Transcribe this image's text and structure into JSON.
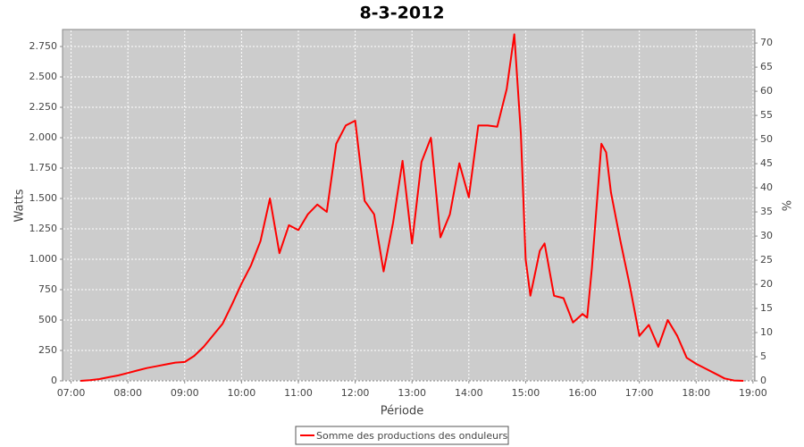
{
  "chart_data": {
    "type": "line",
    "title": "8-3-2012",
    "x_label": "Période",
    "y_label": "Watts",
    "y2_label": "%",
    "x": [
      "07:10",
      "07:20",
      "07:30",
      "07:40",
      "07:50",
      "08:00",
      "08:10",
      "08:20",
      "08:30",
      "08:40",
      "08:50",
      "09:00",
      "09:10",
      "09:20",
      "09:30",
      "09:40",
      "09:50",
      "10:00",
      "10:10",
      "10:20",
      "10:30",
      "10:40",
      "10:50",
      "11:00",
      "11:10",
      "11:20",
      "11:30",
      "11:40",
      "11:50",
      "12:00",
      "12:10",
      "12:20",
      "12:30",
      "12:40",
      "12:50",
      "13:00",
      "13:10",
      "13:20",
      "13:30",
      "13:40",
      "13:50",
      "14:00",
      "14:10",
      "14:20",
      "14:30",
      "14:40",
      "14:48",
      "14:55",
      "15:00",
      "15:05",
      "15:15",
      "15:20",
      "15:30",
      "15:40",
      "15:50",
      "16:00",
      "16:05",
      "16:10",
      "16:20",
      "16:25",
      "16:30",
      "16:40",
      "16:50",
      "17:00",
      "17:10",
      "17:20",
      "17:30",
      "17:40",
      "17:50",
      "18:00",
      "18:10",
      "18:20",
      "18:30",
      "18:40",
      "18:50"
    ],
    "series": [
      {
        "name": "Somme des productions des onduleurs",
        "color": "#ff0000",
        "values": [
          0,
          5,
          15,
          30,
          45,
          65,
          85,
          105,
          120,
          135,
          150,
          155,
          205,
          280,
          375,
          470,
          630,
          800,
          950,
          1150,
          1500,
          1050,
          1280,
          1240,
          1370,
          1450,
          1390,
          1950,
          2100,
          2140,
          1480,
          1370,
          900,
          1300,
          1810,
          1130,
          1800,
          2000,
          1180,
          1370,
          1790,
          1510,
          2100,
          2100,
          2090,
          2400,
          2850,
          2030,
          1000,
          700,
          1070,
          1130,
          700,
          680,
          480,
          550,
          520,
          930,
          1950,
          1880,
          1550,
          1150,
          780,
          370,
          460,
          280,
          500,
          370,
          190,
          140,
          100,
          60,
          20,
          3,
          0
        ]
      }
    ],
    "xlim": [
      "06:51",
      "19:02"
    ],
    "xticks": [
      "07:00",
      "08:00",
      "09:00",
      "10:00",
      "11:00",
      "12:00",
      "13:00",
      "14:00",
      "15:00",
      "16:00",
      "17:00",
      "18:00",
      "19:00"
    ],
    "ylim": [
      0,
      2890
    ],
    "yticks": [
      0,
      250,
      500,
      750,
      {
        "value": 1000,
        "label": "1.000"
      },
      {
        "value": 1250,
        "label": "1.250"
      },
      {
        "value": 1500,
        "label": "1.500"
      },
      {
        "value": 1750,
        "label": "1.750"
      },
      {
        "value": 2000,
        "label": "2.000"
      },
      {
        "value": 2250,
        "label": "2.250"
      },
      {
        "value": 2500,
        "label": "2.500"
      },
      {
        "value": 2750,
        "label": "2.750"
      }
    ],
    "y2lim": [
      0,
      72.8
    ],
    "y2ticks": [
      0,
      5,
      10,
      15,
      20,
      25,
      30,
      35,
      40,
      45,
      50,
      55,
      60,
      65,
      70
    ],
    "grid": true
  }
}
